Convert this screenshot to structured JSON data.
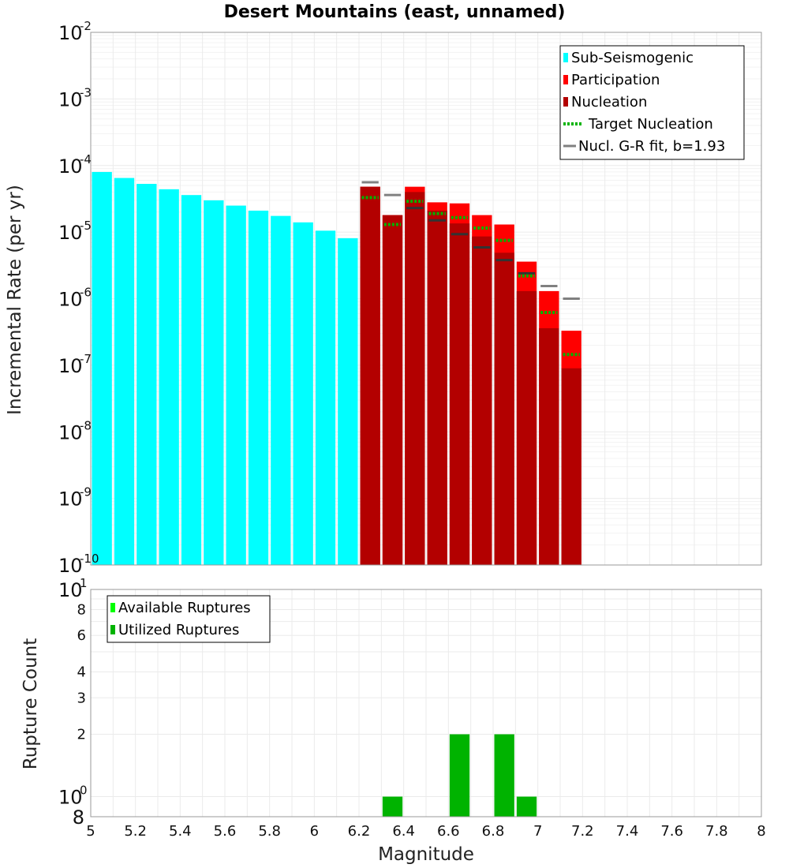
{
  "chart_data": [
    {
      "type": "bar",
      "title": "Desert Mountains (east, unnamed)",
      "xlabel": "",
      "ylabel": "Incremental Rate (per yr)",
      "y_scale": "log",
      "xlim": [
        5,
        8
      ],
      "ylim": [
        1e-10,
        0.01
      ],
      "grid": true,
      "legend_position": "top-right",
      "y_ticks": [
        {
          "base": "10",
          "exp": "-10"
        },
        {
          "base": "10",
          "exp": "-9"
        },
        {
          "base": "10",
          "exp": "-8"
        },
        {
          "base": "10",
          "exp": "-7"
        },
        {
          "base": "10",
          "exp": "-6"
        },
        {
          "base": "10",
          "exp": "-5"
        },
        {
          "base": "10",
          "exp": "-4"
        },
        {
          "base": "10",
          "exp": "-3"
        },
        {
          "base": "10",
          "exp": "-2"
        }
      ],
      "legend": [
        {
          "label": "Sub-Seismogenic",
          "color": "#00ffff",
          "kind": "box"
        },
        {
          "label": "Participation",
          "color": "#ff0000",
          "kind": "box"
        },
        {
          "label": "Nucleation",
          "color": "#b30000",
          "kind": "box"
        },
        {
          "label": "Target Nucleation",
          "color": "#00b300",
          "kind": "dotted"
        },
        {
          "label": "Nucl. G-R fit, b=1.93",
          "color": "#808080",
          "kind": "line"
        }
      ],
      "series": [
        {
          "name": "Sub-Seismogenic",
          "color": "#00ffff",
          "x": [
            5.05,
            5.15,
            5.25,
            5.35,
            5.45,
            5.55,
            5.65,
            5.75,
            5.85,
            5.95,
            6.05,
            6.15
          ],
          "values": [
            8e-05,
            6.5e-05,
            5.3e-05,
            4.4e-05,
            3.6e-05,
            3e-05,
            2.5e-05,
            2.1e-05,
            1.75e-05,
            1.4e-05,
            1.05e-05,
            8.1e-06
          ]
        },
        {
          "name": "Participation",
          "color": "#ff0000",
          "x": [
            6.25,
            6.35,
            6.45,
            6.55,
            6.65,
            6.75,
            6.85,
            6.95,
            7.05,
            7.15
          ],
          "values": [
            4.8e-05,
            1.8e-05,
            4.8e-05,
            2.8e-05,
            2.7e-05,
            1.8e-05,
            1.3e-05,
            3.6e-06,
            1.3e-06,
            3.3e-07
          ]
        },
        {
          "name": "Nucleation",
          "color": "#b30000",
          "x": [
            6.25,
            6.35,
            6.45,
            6.55,
            6.65,
            6.75,
            6.85,
            6.95,
            7.05,
            7.15
          ],
          "values": [
            4.8e-05,
            1.8e-05,
            4e-05,
            2.1e-05,
            1.35e-05,
            8.6e-06,
            4.9e-06,
            1.3e-06,
            3.6e-07,
            9e-08
          ]
        },
        {
          "name": "Target Nucleation",
          "color": "#00b300",
          "x": [
            6.25,
            6.35,
            6.45,
            6.55,
            6.65,
            6.75,
            6.85,
            6.95,
            7.05,
            7.15
          ],
          "values": [
            3.3e-05,
            1.3e-05,
            2.9e-05,
            1.9e-05,
            1.65e-05,
            1.15e-05,
            7.5e-06,
            2.2e-06,
            6.2e-07,
            1.45e-07
          ]
        },
        {
          "name": "Nucl. G-R fit, b=1.93",
          "color": "#808080",
          "x": [
            6.25,
            6.35,
            6.45,
            6.55,
            6.65,
            6.75,
            6.85,
            6.95,
            7.05,
            7.15
          ],
          "values": [
            5.6e-05,
            3.6e-05,
            2.3e-05,
            1.5e-05,
            9.3e-06,
            5.9e-06,
            3.8e-06,
            2.4e-06,
            1.55e-06,
            1e-06
          ]
        }
      ]
    },
    {
      "type": "bar",
      "title": "",
      "xlabel": "Magnitude",
      "ylabel": "Rupture Count",
      "y_scale": "log",
      "xlim": [
        5,
        8
      ],
      "ylim": [
        0.8,
        10
      ],
      "grid": true,
      "legend_position": "top-left",
      "x_ticks": [
        "5",
        "5.2",
        "5.4",
        "5.6",
        "5.8",
        "6",
        "6.2",
        "6.4",
        "6.6",
        "6.8",
        "7",
        "7.2",
        "7.4",
        "7.6",
        "7.8",
        "8"
      ],
      "y_ticks_minor": [
        "8",
        "6",
        "4",
        "3",
        "2"
      ],
      "y_tick_bottom": "8",
      "y_ticks_major": [
        {
          "base": "10",
          "exp": "0"
        },
        {
          "base": "10",
          "exp": "1"
        }
      ],
      "legend": [
        {
          "label": "Available Ruptures",
          "color": "#00ff00",
          "kind": "box"
        },
        {
          "label": "Utilized Ruptures",
          "color": "#00b300",
          "kind": "box"
        }
      ],
      "series": [
        {
          "name": "Utilized Ruptures",
          "color": "#00b300",
          "x": [
            6.35,
            6.65,
            6.85,
            6.95
          ],
          "values": [
            1,
            2,
            2,
            1
          ]
        }
      ]
    }
  ]
}
